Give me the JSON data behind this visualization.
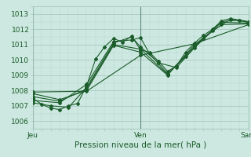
{
  "bg_color": "#cde8e0",
  "grid_color_major": "#a8c8bf",
  "grid_color_minor": "#b8d8d0",
  "line_color": "#1a5c2a",
  "marker_color": "#1a5c2a",
  "title": "Pression niveau de la mer( hPa )",
  "xlim": [
    0,
    48
  ],
  "ylim": [
    1005.5,
    1013.5
  ],
  "yticks": [
    1006,
    1007,
    1008,
    1009,
    1010,
    1011,
    1012,
    1013
  ],
  "xtick_positions": [
    0,
    24,
    48
  ],
  "xtick_labels": [
    "Jeu",
    "Ven",
    "Sam"
  ],
  "vlines": [
    0,
    24,
    48
  ],
  "series": [
    [
      0.0,
      1007.5,
      2.0,
      1007.1,
      4.0,
      1006.85,
      6.0,
      1006.75,
      8.0,
      1007.0,
      10.0,
      1007.15,
      12.0,
      1008.3,
      14.0,
      1010.05,
      16.0,
      1010.85,
      18.0,
      1011.4,
      20.0,
      1011.15,
      22.0,
      1011.55,
      24.0,
      1010.65,
      26.0,
      1010.5,
      28.0,
      1009.9,
      30.0,
      1009.25,
      32.0,
      1009.6,
      34.0,
      1010.5,
      36.0,
      1011.1,
      38.0,
      1011.6,
      40.0,
      1012.0,
      42.0,
      1012.55,
      44.0,
      1012.7,
      46.0,
      1012.6,
      48.0,
      1012.5
    ],
    [
      0.0,
      1007.2,
      4.0,
      1007.0,
      8.0,
      1006.9,
      12.0,
      1008.2,
      18.0,
      1011.1,
      22.0,
      1011.5,
      24.0,
      1010.85,
      28.0,
      1009.8,
      32.0,
      1009.5,
      36.0,
      1010.8,
      40.0,
      1011.9,
      44.0,
      1012.65,
      48.0,
      1012.45
    ],
    [
      0.0,
      1007.35,
      6.0,
      1007.2,
      12.0,
      1008.4,
      18.0,
      1011.2,
      22.0,
      1011.3,
      24.0,
      1011.45,
      26.0,
      1010.4,
      30.0,
      1009.1,
      34.0,
      1010.2,
      38.0,
      1011.4,
      42.0,
      1012.5,
      46.0,
      1012.6,
      48.0,
      1012.45
    ],
    [
      0.0,
      1007.6,
      6.0,
      1007.3,
      12.0,
      1008.1,
      18.0,
      1011.0,
      24.0,
      1010.7,
      30.0,
      1009.05,
      36.0,
      1010.9,
      42.0,
      1012.45,
      48.0,
      1012.4
    ],
    [
      0.0,
      1007.8,
      6.0,
      1007.4,
      12.0,
      1008.0,
      18.0,
      1010.95,
      24.0,
      1010.5,
      30.0,
      1009.0,
      36.0,
      1011.0,
      42.0,
      1012.3,
      48.0,
      1012.35
    ],
    [
      0.0,
      1007.9,
      12.0,
      1007.95,
      24.0,
      1010.3,
      36.0,
      1011.05,
      48.0,
      1012.3
    ]
  ]
}
